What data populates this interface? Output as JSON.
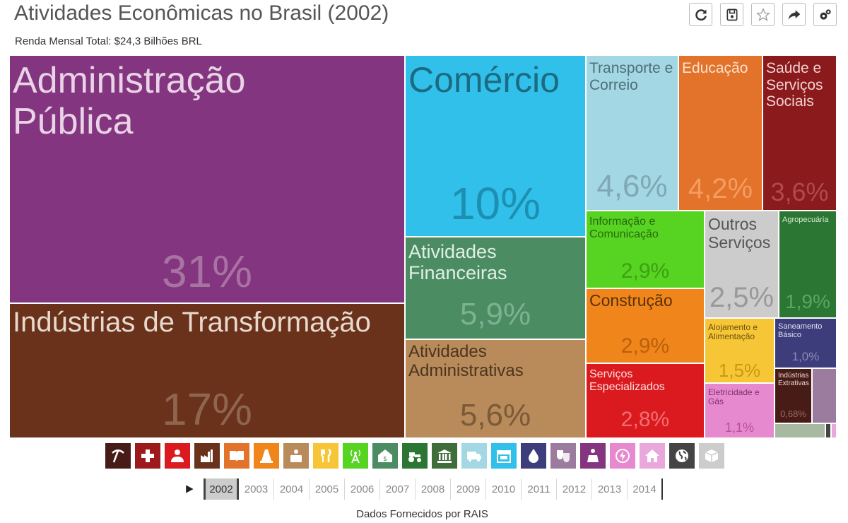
{
  "header": {
    "title": "Atividades Econômicas no Brasil (2002)",
    "subtitle": "Renda Mensal Total: $24,3 Bilhões BRL"
  },
  "toolbar": [
    {
      "name": "refresh-icon"
    },
    {
      "name": "save-icon"
    },
    {
      "name": "star-icon"
    },
    {
      "name": "share-icon"
    },
    {
      "name": "settings-icon"
    }
  ],
  "treemap": [
    {
      "label": "Administração Pública",
      "pct": "31%",
      "color": "#83357f"
    },
    {
      "label": "Indústrias de Transformação",
      "pct": "17%",
      "color": "#6a321a"
    },
    {
      "label": "Comércio",
      "pct": "10%",
      "color": "#31c0ea"
    },
    {
      "label": "Atividades Financeiras",
      "pct": "5,9%",
      "color": "#4c8c63"
    },
    {
      "label": "Atividades Administrativas",
      "pct": "5,6%",
      "color": "#b98a5a"
    },
    {
      "label": "Transporte e Correio",
      "pct": "4,6%",
      "color": "#a3d7e4"
    },
    {
      "label": "Educação",
      "pct": "4,2%",
      "color": "#e3732a"
    },
    {
      "label": "Saúde e Serviços Sociais",
      "pct": "3,6%",
      "color": "#8b1a1c"
    },
    {
      "label": "Informação e Comunicação",
      "pct": "2,9%",
      "color": "#57d322"
    },
    {
      "label": "Outros Serviços",
      "pct": "2,5%",
      "color": "#cccccc"
    },
    {
      "label": "Agropecuária",
      "pct": "1,9%",
      "color": "#2b7632"
    },
    {
      "label": "Construção",
      "pct": "2,9%",
      "color": "#f0861b"
    },
    {
      "label": "Alojamento e Alimentação",
      "pct": "1,5%",
      "color": "#f6c637"
    },
    {
      "label": "Saneamento Básico",
      "pct": "1,0%",
      "color": "#3d3d7b"
    },
    {
      "label": "Serviços Especializados",
      "pct": "2,8%",
      "color": "#db1a1f"
    },
    {
      "label": "Eletricidade e Gás",
      "pct": "1,1%",
      "color": "#e789cf"
    },
    {
      "label": "Indústrias Extrativas",
      "pct": "0,68%",
      "color": "#471c17"
    },
    {
      "label": "",
      "pct": "",
      "color": "#9c7c9e"
    },
    {
      "label": "",
      "pct": "",
      "color": "#a7b9a0"
    },
    {
      "label": "",
      "pct": "",
      "color": "#444444"
    },
    {
      "label": "",
      "pct": "",
      "color": "#eaa7dc"
    }
  ],
  "categories": [
    {
      "name": "mining-pick-icon",
      "color": "#471c17"
    },
    {
      "name": "health-cross-icon",
      "color": "#9c1a1c"
    },
    {
      "name": "person-icon",
      "color": "#db1a1f"
    },
    {
      "name": "factory-icon",
      "color": "#6a321a"
    },
    {
      "name": "book-icon",
      "color": "#e3732a"
    },
    {
      "name": "traffic-cone-icon",
      "color": "#f0861b"
    },
    {
      "name": "briefcase-icon",
      "color": "#b98a5a"
    },
    {
      "name": "fork-knife-icon",
      "color": "#f6c637"
    },
    {
      "name": "antenna-icon",
      "color": "#57d322"
    },
    {
      "name": "bank-house-icon",
      "color": "#4c8c63"
    },
    {
      "name": "tractor-icon",
      "color": "#2b7632"
    },
    {
      "name": "government-building-icon",
      "color": "#3f6e3a"
    },
    {
      "name": "truck-icon",
      "color": "#a3d7e4"
    },
    {
      "name": "store-icon",
      "color": "#31c0ea"
    },
    {
      "name": "water-drop-icon",
      "color": "#3d3d7b"
    },
    {
      "name": "theater-masks-icon",
      "color": "#9c7c9e"
    },
    {
      "name": "podium-icon",
      "color": "#83357f"
    },
    {
      "name": "lightning-icon",
      "color": "#e789cf"
    },
    {
      "name": "home-icon",
      "color": "#eaa7dc"
    },
    {
      "name": "globe-icon",
      "color": "#444444"
    },
    {
      "name": "box-icon",
      "color": "#cccccc"
    }
  ],
  "timeline": {
    "years": [
      "2002",
      "2003",
      "2004",
      "2005",
      "2006",
      "2007",
      "2008",
      "2009",
      "2010",
      "2011",
      "2012",
      "2013",
      "2014"
    ],
    "active": "2002"
  },
  "footer": {
    "credit": "Dados Fornecidos por RAIS"
  }
}
